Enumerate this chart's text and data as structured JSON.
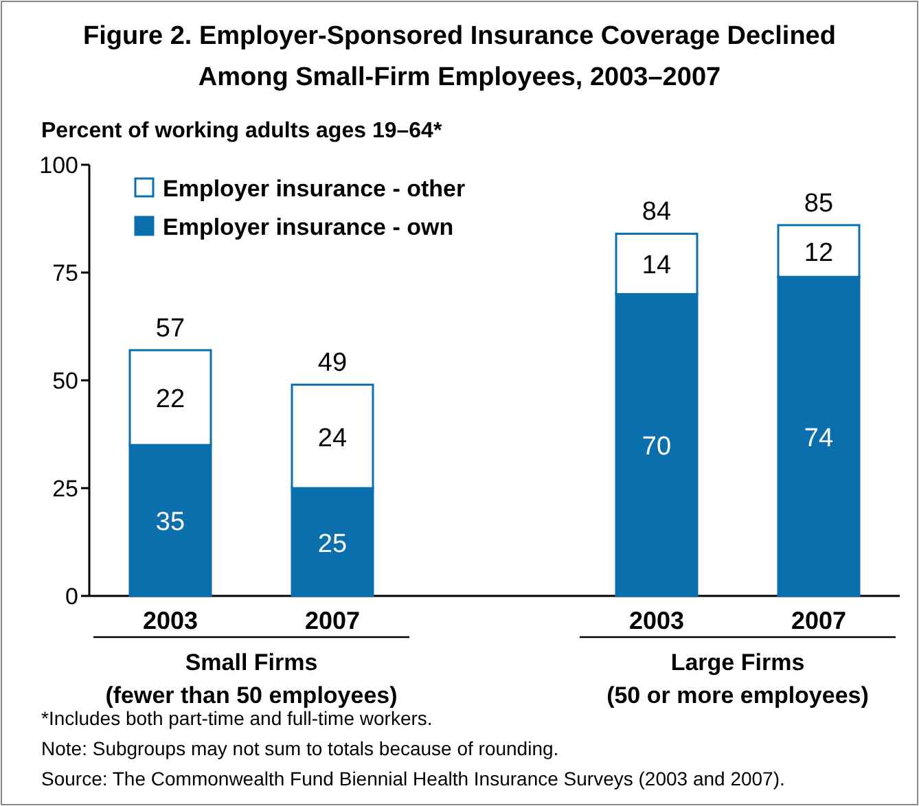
{
  "chart_data": {
    "type": "bar",
    "title": "Figure 2. Employer-Sponsored Insurance Coverage Declined\nAmong Small-Firm Employees, 2003–2007",
    "ylabel": "Percent of working adults ages 19–64*",
    "categories": [
      "2003",
      "2007",
      null,
      "2003",
      "2007"
    ],
    "series": [
      {
        "name": "Employer insurance - own",
        "color": "#0b6fae",
        "values": [
          35,
          25,
          null,
          70,
          74
        ]
      },
      {
        "name": "Employer insurance - other",
        "color": "#ffffff",
        "values": [
          22,
          24,
          null,
          14,
          12
        ]
      }
    ],
    "stacked": true,
    "data_labels": true,
    "totals": [
      "57",
      "49",
      null,
      "84",
      "85"
    ],
    "ylim": [
      0,
      100
    ],
    "yticks": [
      0,
      25,
      50,
      75,
      100
    ],
    "legend": "top left",
    "annotations": [
      "Small Firms\n(fewer than 50 employees)",
      "Large Firms\n(50 or more employees)",
      "*Includes both part-time and full-time workers.",
      "Note: Subgroups may not sum to totals because of rounding.",
      "Source: The Commonwealth Fund Biennial Health Insurance Surveys (2003 and 2007)."
    ]
  }
}
